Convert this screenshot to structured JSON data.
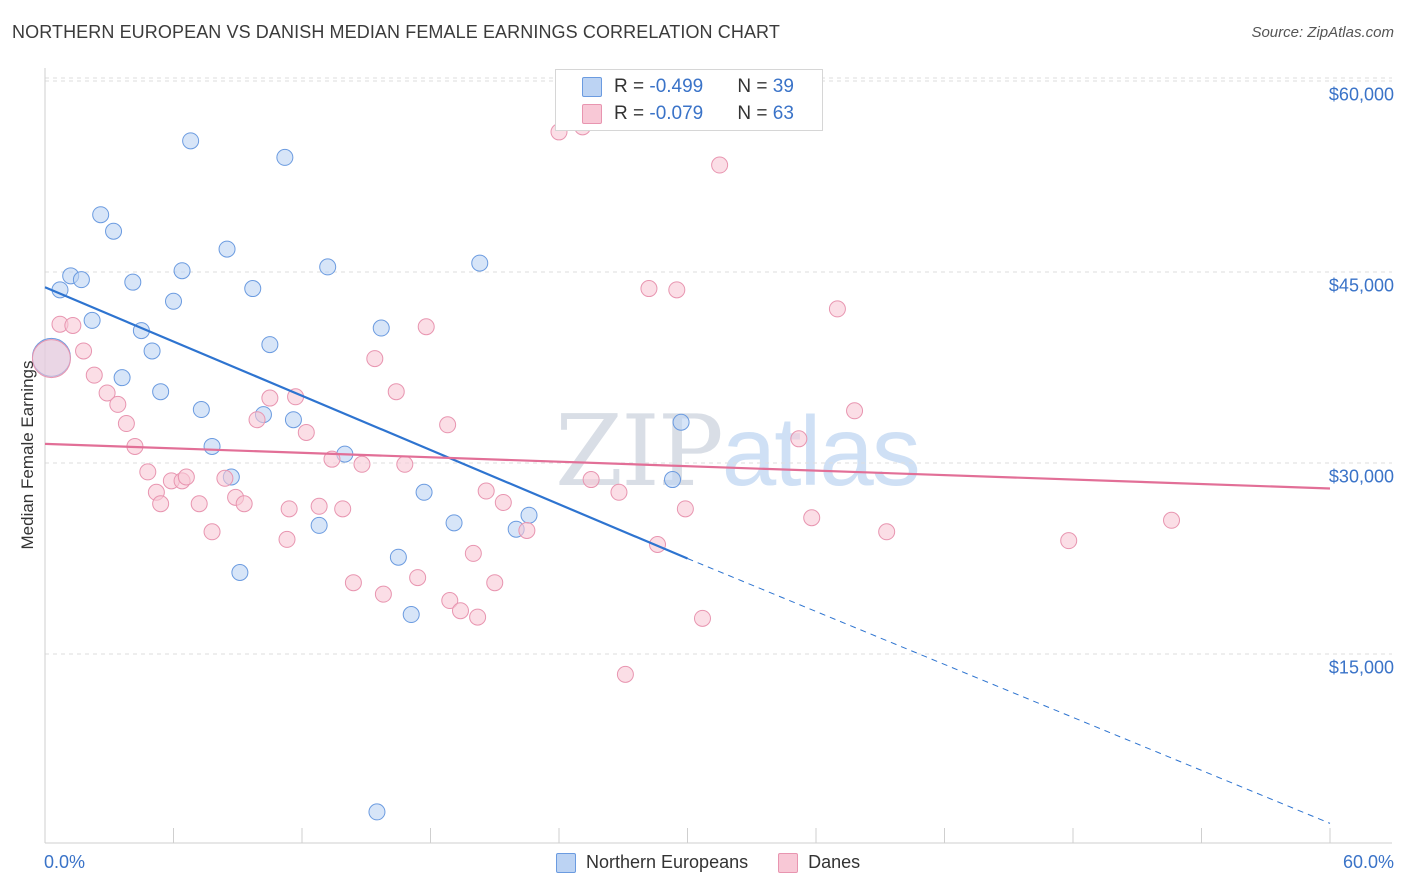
{
  "title": "NORTHERN EUROPEAN VS DANISH MEDIAN FEMALE EARNINGS CORRELATION CHART",
  "source": "Source: ZipAtlas.com",
  "watermark": {
    "zip": "ZIP",
    "atlas": "atlas"
  },
  "colors": {
    "blue_fill": "#bcd3f3",
    "blue_stroke": "#6b9be0",
    "blue_line": "#2e74d0",
    "pink_fill": "#f8c8d6",
    "pink_stroke": "#e895b0",
    "pink_line": "#e26f97",
    "axis_text": "#3a73c8",
    "grid": "#dedede"
  },
  "legend": {
    "rows": [
      {
        "r_label": "R = ",
        "r_value": "-0.499",
        "n_label": "N = ",
        "n_value": "39"
      },
      {
        "r_label": "R = ",
        "r_value": "-0.079",
        "n_label": "N = ",
        "n_value": "63"
      }
    ]
  },
  "bottom_legend": [
    "Northern Europeans",
    "Danes"
  ],
  "chart_data": {
    "type": "scatter",
    "title": "NORTHERN EUROPEAN VS DANISH MEDIAN FEMALE EARNINGS CORRELATION CHART",
    "xlabel": "",
    "ylabel": "Median Female Earnings",
    "xlim": [
      0,
      60
    ],
    "ylim": [
      1500,
      62000
    ],
    "x_tick_labels": [
      "0.0%",
      "60.0%"
    ],
    "y_ticks": [
      15000,
      30000,
      45000,
      60000
    ],
    "y_tick_labels": [
      "$15,000",
      "$30,000",
      "$45,000",
      "$60,000"
    ],
    "grid": true,
    "series": [
      {
        "name": "Northern Europeans",
        "R": -0.499,
        "N": 39,
        "trend": {
          "x0": 0,
          "y0": 43800,
          "x1": 30,
          "y1": 22500,
          "dashed_to_x": 60,
          "dashed_to_y": 1700
        },
        "points": [
          {
            "x": 0.3,
            "y": 38300,
            "big": true
          },
          {
            "x": 6.8,
            "y": 55300
          },
          {
            "x": 11.2,
            "y": 54000
          },
          {
            "x": 2.6,
            "y": 49500
          },
          {
            "x": 3.2,
            "y": 48200
          },
          {
            "x": 8.5,
            "y": 46800
          },
          {
            "x": 1.2,
            "y": 44700
          },
          {
            "x": 6.4,
            "y": 45100
          },
          {
            "x": 13.2,
            "y": 45400
          },
          {
            "x": 20.3,
            "y": 45700
          },
          {
            "x": 1.7,
            "y": 44400
          },
          {
            "x": 4.1,
            "y": 44200
          },
          {
            "x": 0.7,
            "y": 43600
          },
          {
            "x": 9.7,
            "y": 43700
          },
          {
            "x": 6.0,
            "y": 42700
          },
          {
            "x": 2.2,
            "y": 41200
          },
          {
            "x": 4.5,
            "y": 40400
          },
          {
            "x": 15.7,
            "y": 40600
          },
          {
            "x": 10.5,
            "y": 39300
          },
          {
            "x": 5.0,
            "y": 38800
          },
          {
            "x": 3.6,
            "y": 36700
          },
          {
            "x": 5.4,
            "y": 35600
          },
          {
            "x": 7.3,
            "y": 34200
          },
          {
            "x": 10.2,
            "y": 33800
          },
          {
            "x": 11.6,
            "y": 33400
          },
          {
            "x": 29.7,
            "y": 33200
          },
          {
            "x": 7.8,
            "y": 31300
          },
          {
            "x": 14.0,
            "y": 30700
          },
          {
            "x": 8.7,
            "y": 28900
          },
          {
            "x": 29.3,
            "y": 28700
          },
          {
            "x": 17.7,
            "y": 27700
          },
          {
            "x": 19.1,
            "y": 25300
          },
          {
            "x": 12.8,
            "y": 25100
          },
          {
            "x": 22.0,
            "y": 24800
          },
          {
            "x": 22.6,
            "y": 25900
          },
          {
            "x": 16.5,
            "y": 22600
          },
          {
            "x": 9.1,
            "y": 21400
          },
          {
            "x": 17.1,
            "y": 18100
          },
          {
            "x": 15.5,
            "y": 2600
          }
        ]
      },
      {
        "name": "Danes",
        "R": -0.079,
        "N": 63,
        "trend": {
          "x0": 0,
          "y0": 31500,
          "x1": 60,
          "y1": 28000
        },
        "points": [
          {
            "x": 0.3,
            "y": 38200,
            "big": true
          },
          {
            "x": 24.0,
            "y": 56000
          },
          {
            "x": 25.1,
            "y": 56400
          },
          {
            "x": 31.5,
            "y": 53400
          },
          {
            "x": 28.2,
            "y": 43700
          },
          {
            "x": 29.5,
            "y": 43600
          },
          {
            "x": 37.0,
            "y": 42100
          },
          {
            "x": 0.7,
            "y": 40900
          },
          {
            "x": 1.3,
            "y": 40800
          },
          {
            "x": 17.8,
            "y": 40700
          },
          {
            "x": 1.8,
            "y": 38800
          },
          {
            "x": 15.4,
            "y": 38200
          },
          {
            "x": 2.3,
            "y": 36900
          },
          {
            "x": 2.9,
            "y": 35500
          },
          {
            "x": 16.4,
            "y": 35600
          },
          {
            "x": 3.4,
            "y": 34600
          },
          {
            "x": 10.5,
            "y": 35100
          },
          {
            "x": 11.7,
            "y": 35200
          },
          {
            "x": 37.8,
            "y": 34100
          },
          {
            "x": 3.8,
            "y": 33100
          },
          {
            "x": 9.9,
            "y": 33400
          },
          {
            "x": 18.8,
            "y": 33000
          },
          {
            "x": 12.2,
            "y": 32400
          },
          {
            "x": 35.2,
            "y": 31900
          },
          {
            "x": 4.2,
            "y": 31300
          },
          {
            "x": 13.4,
            "y": 30300
          },
          {
            "x": 14.8,
            "y": 29900
          },
          {
            "x": 16.8,
            "y": 29900
          },
          {
            "x": 4.8,
            "y": 29300
          },
          {
            "x": 5.9,
            "y": 28600
          },
          {
            "x": 6.4,
            "y": 28600
          },
          {
            "x": 6.6,
            "y": 28900
          },
          {
            "x": 8.4,
            "y": 28800
          },
          {
            "x": 25.5,
            "y": 28700
          },
          {
            "x": 5.2,
            "y": 27700
          },
          {
            "x": 20.6,
            "y": 27800
          },
          {
            "x": 26.8,
            "y": 27700
          },
          {
            "x": 8.9,
            "y": 27300
          },
          {
            "x": 7.2,
            "y": 26800
          },
          {
            "x": 21.4,
            "y": 26900
          },
          {
            "x": 5.4,
            "y": 26800
          },
          {
            "x": 9.3,
            "y": 26800
          },
          {
            "x": 11.4,
            "y": 26400
          },
          {
            "x": 12.8,
            "y": 26600
          },
          {
            "x": 13.9,
            "y": 26400
          },
          {
            "x": 29.9,
            "y": 26400
          },
          {
            "x": 35.8,
            "y": 25700
          },
          {
            "x": 52.6,
            "y": 25500
          },
          {
            "x": 7.8,
            "y": 24600
          },
          {
            "x": 22.5,
            "y": 24700
          },
          {
            "x": 39.3,
            "y": 24600
          },
          {
            "x": 11.3,
            "y": 24000
          },
          {
            "x": 28.6,
            "y": 23600
          },
          {
            "x": 47.8,
            "y": 23900
          },
          {
            "x": 20.0,
            "y": 22900
          },
          {
            "x": 17.4,
            "y": 21000
          },
          {
            "x": 14.4,
            "y": 20600
          },
          {
            "x": 21.0,
            "y": 20600
          },
          {
            "x": 15.8,
            "y": 19700
          },
          {
            "x": 18.9,
            "y": 19200
          },
          {
            "x": 19.4,
            "y": 18400
          },
          {
            "x": 20.2,
            "y": 17900
          },
          {
            "x": 30.7,
            "y": 17800
          },
          {
            "x": 27.1,
            "y": 13400
          }
        ]
      }
    ]
  }
}
